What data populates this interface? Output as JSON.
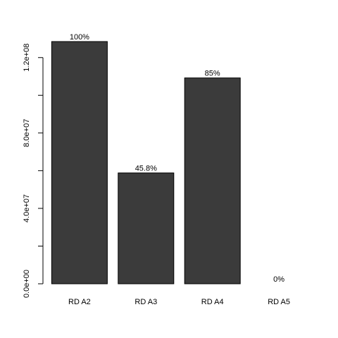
{
  "chart_data": {
    "type": "bar",
    "categories": [
      "RD A2",
      "RD A3",
      "RD A4",
      "RD A5"
    ],
    "values": [
      128500000,
      58800000,
      109200000,
      0
    ],
    "data_labels": [
      "100%",
      "45.8%",
      "85%",
      "0%"
    ],
    "yticks": [
      0,
      40000000,
      80000000,
      120000000
    ],
    "ytick_labels": [
      "0.0e+00",
      "4.0e+07",
      "8.0e+07",
      "1.2e+08"
    ],
    "ylim": [
      0,
      128500000
    ],
    "grid": false,
    "bar_color": "#3b3b3b"
  }
}
